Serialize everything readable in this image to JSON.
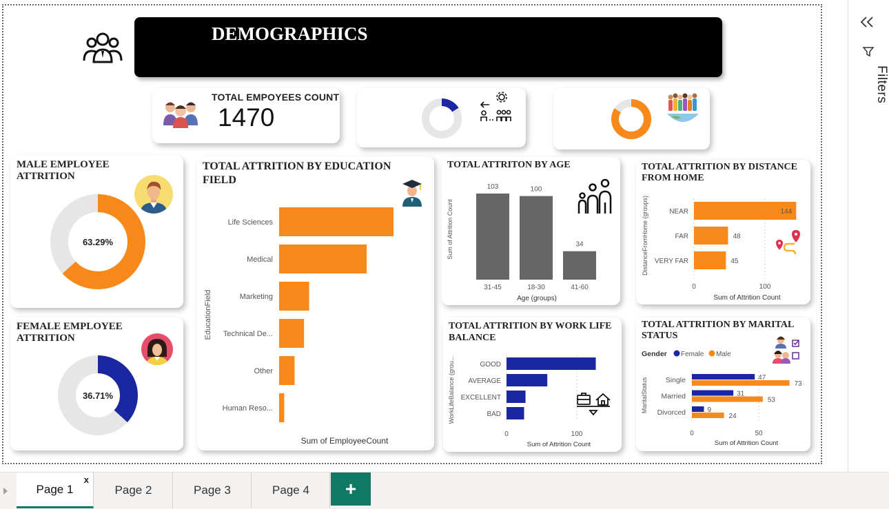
{
  "header": {
    "title": "DEMOGRAPHICS",
    "icon": "people-group-icon"
  },
  "kpi": {
    "label": "TOTAL EMPOYEES COUNT",
    "value": "1470"
  },
  "male": {
    "title": "MALE EMPLOYEE ATTRITION",
    "percent_label": "63.29%",
    "fraction": 0.6329,
    "color": "#F7891B"
  },
  "female": {
    "title": "FEMALE EMPLOYEE ATTRITION",
    "percent_label": "36.71%",
    "fraction": 0.3671,
    "color": "#1A27A0"
  },
  "mini_donuts": [
    {
      "fraction": 0.16,
      "color": "#1A27A0"
    },
    {
      "fraction": 0.84,
      "color": "#F7891B"
    }
  ],
  "education": {
    "title": "TOTAL ATTRITION BY EDUCATION FIELD",
    "ylabel": "EducationField",
    "xlabel": "Sum of EmployeeCount",
    "categories": [
      "Life Sciences",
      "Medical",
      "Marketing",
      "Technical De...",
      "Other",
      "Human Reso..."
    ],
    "values": [
      606,
      464,
      159,
      132,
      82,
      27
    ],
    "color": "#F7891B"
  },
  "age": {
    "title": "TOTAL ATTRITON BY AGE",
    "ylabel": "Sum of Attrition Count",
    "xlabel": "Age (groups)",
    "categories": [
      "31-45",
      "18-30",
      "41-60"
    ],
    "values": [
      103,
      100,
      34
    ],
    "color": "#666666"
  },
  "distance": {
    "title": "TOTAL ATTRITION BY DISTANCE FROM HOME",
    "ylabel": "DistanceFromHome (groups)",
    "xlabel": "Sum of Attrition Count",
    "categories": [
      "NEAR",
      "FAR",
      "VERY FAR"
    ],
    "values": [
      144,
      48,
      45
    ],
    "ticks": [
      "0",
      "100"
    ],
    "color": "#F7891B"
  },
  "worklife": {
    "title": "TOTAL ATTRITION BY WORK LIFE BALANCE",
    "ylabel": "WorkLifeBalance (grou...",
    "xlabel": "Sum of Attrition Count",
    "categories": [
      "GOOD",
      "AVERAGE",
      "EXCELLENT",
      "BAD"
    ],
    "values": [
      127,
      58,
      27,
      25
    ],
    "ticks": [
      "0",
      "100"
    ],
    "color": "#1A27A0"
  },
  "marital": {
    "title": "TOTAL ATTRITION BY MARITAL STATUS",
    "legend_title": "Gender",
    "legend": [
      "Female",
      "Male"
    ],
    "ylabel": "MaritalStatus",
    "xlabel": "Sum of Attrition Count",
    "categories": [
      "Single",
      "Married",
      "Divorced"
    ],
    "female": [
      47,
      31,
      9
    ],
    "male": [
      73,
      53,
      24
    ],
    "ticks": [
      "0",
      "50"
    ],
    "female_color": "#1A27A0",
    "male_color": "#F7891B"
  },
  "filters": {
    "label": "Filters"
  },
  "tabs": [
    "Page 1",
    "Page 2",
    "Page 3",
    "Page 4"
  ],
  "tab_close": "x",
  "add_tab": "+",
  "chart_data": [
    {
      "type": "bar",
      "title": "TOTAL ATTRITION BY EDUCATION FIELD",
      "categories": [
        "Life Sciences",
        "Medical",
        "Marketing",
        "Technical De...",
        "Other",
        "Human Reso..."
      ],
      "values": [
        606,
        464,
        159,
        132,
        82,
        27
      ],
      "xlabel": "Sum of EmployeeCount",
      "ylabel": "EducationField"
    },
    {
      "type": "bar",
      "title": "TOTAL ATTRITON BY AGE",
      "categories": [
        "31-45",
        "18-30",
        "41-60"
      ],
      "values": [
        103,
        100,
        34
      ],
      "xlabel": "Age (groups)",
      "ylabel": "Sum of Attrition Count"
    },
    {
      "type": "bar",
      "title": "TOTAL ATTRITION BY DISTANCE FROM HOME",
      "categories": [
        "NEAR",
        "FAR",
        "VERY FAR"
      ],
      "values": [
        144,
        48,
        45
      ],
      "xlabel": "Sum of Attrition Count",
      "ylabel": "DistanceFromHome (groups)",
      "xlim": [
        0,
        150
      ]
    },
    {
      "type": "bar",
      "title": "TOTAL ATTRITION BY WORK LIFE BALANCE",
      "categories": [
        "GOOD",
        "AVERAGE",
        "EXCELLENT",
        "BAD"
      ],
      "values": [
        127,
        58,
        27,
        25
      ],
      "xlabel": "Sum of Attrition Count",
      "ylabel": "WorkLifeBalance (grou...",
      "xlim": [
        0,
        130
      ]
    },
    {
      "type": "bar",
      "title": "TOTAL ATTRITION BY MARITAL STATUS",
      "categories": [
        "Single",
        "Married",
        "Divorced"
      ],
      "series": [
        {
          "name": "Female",
          "values": [
            47,
            31,
            9
          ]
        },
        {
          "name": "Male",
          "values": [
            73,
            53,
            24
          ]
        }
      ],
      "xlabel": "Sum of Attrition Count",
      "ylabel": "MaritalStatus",
      "xlim": [
        0,
        75
      ]
    },
    {
      "type": "pie",
      "title": "MALE EMPLOYEE ATTRITION",
      "values": [
        63.29
      ]
    },
    {
      "type": "pie",
      "title": "FEMALE EMPLOYEE ATTRITION",
      "values": [
        36.71
      ]
    }
  ]
}
